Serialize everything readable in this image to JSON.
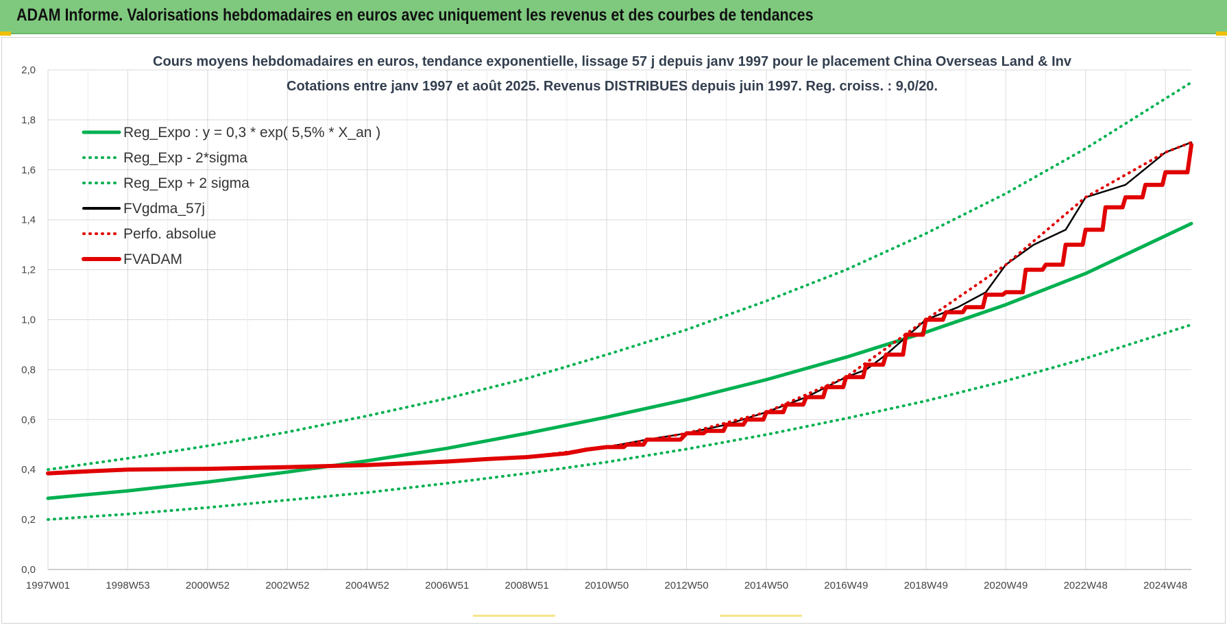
{
  "header": {
    "title": "ADAM Informe. Valorisations hebdomadaires en euros avec uniquement les revenus et des courbes de tendances"
  },
  "colors": {
    "header_bg": "#7fc97f",
    "reg_expo": "#00b050",
    "sigma": "#00b050",
    "fvgdma": "#000000",
    "perfo": "#e00000",
    "fvadam": "#e00000"
  },
  "chart_data": {
    "type": "line",
    "title_line1": "Cours moyens hebdomadaires en euros, tendance exponentielle, lissage 57 j depuis janv 1997  pour le placement China Overseas Land & Inv",
    "title_line2": "Cotations entre janv 1997 et août 2025. Revenus DISTRIBUES depuis juin 1997. Reg. croiss. : 9,0/20.",
    "xlabel": "",
    "ylabel": "",
    "ylim": [
      0,
      2
    ],
    "yticks": [
      "0,0",
      "0,2",
      "0,4",
      "0,6",
      "0,8",
      "1,0",
      "1,2",
      "1,4",
      "1,6",
      "1,8",
      "2,0"
    ],
    "xlim": [
      1997.0,
      2025.65
    ],
    "xticks": [
      {
        "label": "1997W01",
        "year": 1997.0
      },
      {
        "label": "1998W53",
        "year": 1999.0
      },
      {
        "label": "2000W52",
        "year": 2001.0
      },
      {
        "label": "2002W52",
        "year": 2003.0
      },
      {
        "label": "2004W52",
        "year": 2005.0
      },
      {
        "label": "2006W51",
        "year": 2007.0
      },
      {
        "label": "2008W51",
        "year": 2009.0
      },
      {
        "label": "2010W50",
        "year": 2011.0
      },
      {
        "label": "2012W50",
        "year": 2013.0
      },
      {
        "label": "2014W50",
        "year": 2015.0
      },
      {
        "label": "2016W49",
        "year": 2017.0
      },
      {
        "label": "2018W49",
        "year": 2019.0
      },
      {
        "label": "2020W49",
        "year": 2021.0
      },
      {
        "label": "2022W48",
        "year": 2023.0
      },
      {
        "label": "2024W48",
        "year": 2025.0
      }
    ],
    "grid": true,
    "legend_position": "top-left",
    "series": [
      {
        "name": "Reg_Expo : y = 0,3 * exp( 5,5% *  X_an )",
        "style": "solid-thick",
        "color": "#00b050",
        "x": [
          1997,
          1999,
          2001,
          2003,
          2005,
          2007,
          2009,
          2011,
          2013,
          2015,
          2017,
          2019,
          2021,
          2023,
          2025.65
        ],
        "y": [
          0.285,
          0.315,
          0.35,
          0.39,
          0.435,
          0.485,
          0.545,
          0.61,
          0.68,
          0.76,
          0.85,
          0.95,
          1.06,
          1.185,
          1.385
        ]
      },
      {
        "name": "Reg_Exp - 2*sigma",
        "style": "dotted",
        "color": "#00b050",
        "x": [
          1997,
          1999,
          2001,
          2003,
          2005,
          2007,
          2009,
          2011,
          2013,
          2015,
          2017,
          2019,
          2021,
          2023,
          2025.65
        ],
        "y": [
          0.2,
          0.222,
          0.248,
          0.278,
          0.308,
          0.345,
          0.385,
          0.43,
          0.482,
          0.54,
          0.605,
          0.675,
          0.755,
          0.845,
          0.98
        ]
      },
      {
        "name": "Reg_Exp + 2 sigma",
        "style": "dotted",
        "color": "#00b050",
        "x": [
          1997,
          1999,
          2001,
          2003,
          2005,
          2007,
          2009,
          2011,
          2013,
          2015,
          2017,
          2019,
          2021,
          2023,
          2025.65
        ],
        "y": [
          0.4,
          0.445,
          0.495,
          0.55,
          0.615,
          0.685,
          0.765,
          0.86,
          0.96,
          1.075,
          1.2,
          1.345,
          1.505,
          1.685,
          1.95
        ]
      },
      {
        "name": "FVgdma_57j",
        "style": "solid",
        "color": "#000000",
        "x": [
          1997.0,
          1998.0,
          1999.0,
          2001.0,
          2003.0,
          2005.0,
          2007.0,
          2009.0,
          2010.0,
          2011.0,
          2012.0,
          2013.0,
          2014.0,
          2015.0,
          2016.0,
          2017.0,
          2017.5,
          2018.0,
          2019.0,
          2019.8,
          2020.5,
          2021.0,
          2021.7,
          2022.5,
          2023.0,
          2024.0,
          2025.0,
          2025.65
        ],
        "y": [
          0.385,
          0.393,
          0.4,
          0.403,
          0.41,
          0.418,
          0.432,
          0.45,
          0.465,
          0.49,
          0.52,
          0.545,
          0.58,
          0.63,
          0.69,
          0.77,
          0.8,
          0.86,
          1.0,
          1.05,
          1.11,
          1.22,
          1.3,
          1.36,
          1.49,
          1.54,
          1.67,
          1.71
        ]
      },
      {
        "name": "Perfo. absolue",
        "style": "dotted",
        "color": "#e00000",
        "x": [
          1997.0,
          1999.0,
          2003.0,
          2007.0,
          2009.0,
          2011.0,
          2013.0,
          2015.0,
          2017.0,
          2019.0,
          2021.0,
          2023.0,
          2025.0,
          2025.65
        ],
        "y": [
          0.385,
          0.4,
          0.41,
          0.432,
          0.45,
          0.49,
          0.545,
          0.63,
          0.77,
          1.0,
          1.22,
          1.49,
          1.67,
          1.71
        ]
      },
      {
        "name": "FVADAM",
        "style": "solid-thick",
        "color": "#e00000",
        "x": [
          1997.0,
          1998.0,
          1999.0,
          2001.0,
          2003.0,
          2005.0,
          2006.0,
          2007.0,
          2008.0,
          2009.0,
          2010.0,
          2010.5,
          2011.0,
          2011.5,
          2012.0,
          2013.0,
          2013.5,
          2014.0,
          2014.5,
          2015.0,
          2015.5,
          2016.0,
          2016.5,
          2017.0,
          2017.5,
          2018.0,
          2018.5,
          2019.0,
          2019.5,
          2020.0,
          2020.5,
          2021.0,
          2021.5,
          2022.0,
          2022.5,
          2023.0,
          2023.5,
          2024.0,
          2024.5,
          2025.0,
          2025.65
        ],
        "y": [
          0.385,
          0.393,
          0.4,
          0.403,
          0.41,
          0.418,
          0.425,
          0.432,
          0.442,
          0.45,
          0.465,
          0.48,
          0.49,
          0.5,
          0.52,
          0.545,
          0.555,
          0.58,
          0.6,
          0.63,
          0.66,
          0.69,
          0.73,
          0.77,
          0.82,
          0.86,
          0.94,
          1.0,
          1.03,
          1.05,
          1.1,
          1.11,
          1.2,
          1.22,
          1.3,
          1.36,
          1.45,
          1.49,
          1.54,
          1.59,
          1.7
        ]
      }
    ]
  }
}
